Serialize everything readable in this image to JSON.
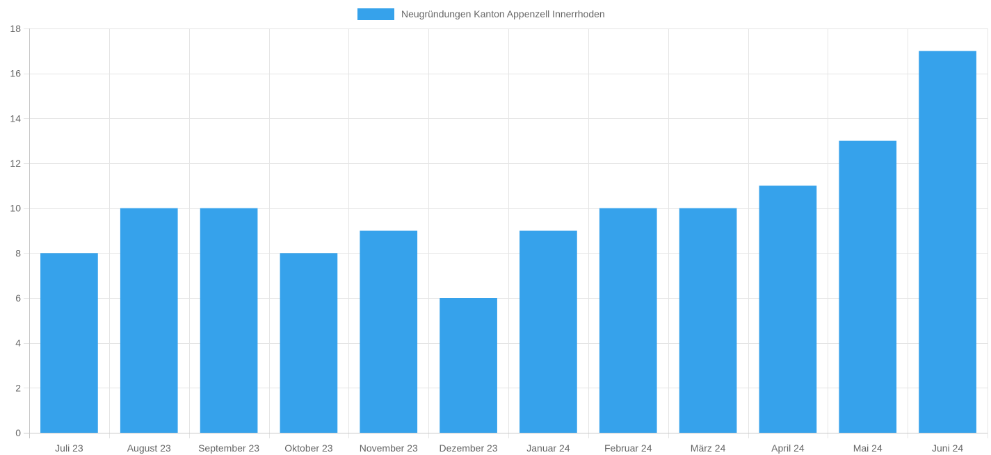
{
  "chart_data": {
    "type": "bar",
    "categories": [
      "Juli 23",
      "August 23",
      "September 23",
      "Oktober 23",
      "November 23",
      "Dezember 23",
      "Januar 24",
      "Februar 24",
      "März 24",
      "April 24",
      "Mai 24",
      "Juni 24"
    ],
    "series": [
      {
        "name": "Neugründungen Kanton Appenzell Innerrhoden",
        "values": [
          8,
          10,
          10,
          8,
          9,
          6,
          9,
          10,
          10,
          11,
          13,
          17
        ],
        "color": "#36a2eb"
      }
    ],
    "title": "",
    "xlabel": "",
    "ylabel": "",
    "ylim": [
      0,
      18
    ],
    "yticks": [
      0,
      2,
      4,
      6,
      8,
      10,
      12,
      14,
      16,
      18
    ],
    "grid": true,
    "legend_position": "top-center",
    "colors": {
      "grid": "#e5e5e5",
      "axis": "#c8c8c8",
      "tick_text": "#666666"
    }
  }
}
